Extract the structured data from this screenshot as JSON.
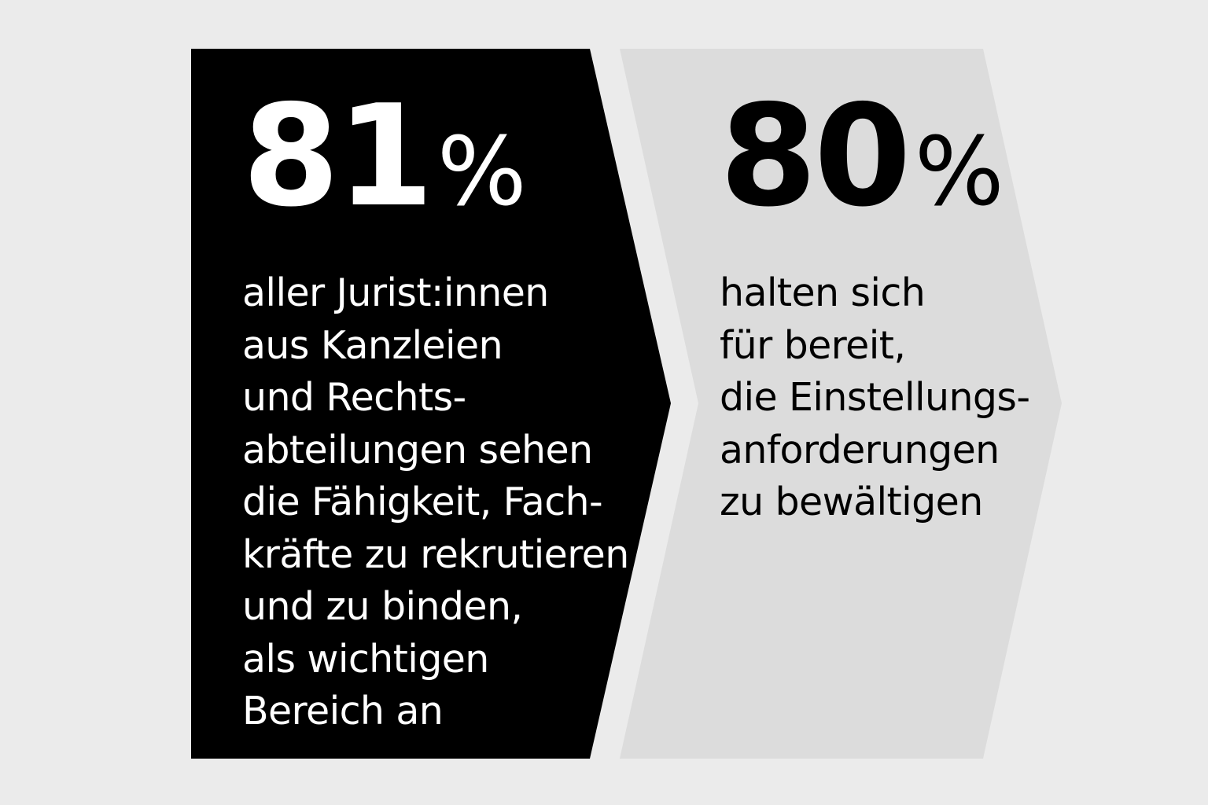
{
  "colors": {
    "background": "#ebebeb",
    "left_panel": "#000000",
    "right_panel": "#dcdcdc",
    "left_text": "#ffffff",
    "right_text": "#000000"
  },
  "stats": [
    {
      "number": "81",
      "percent": "%",
      "lines": [
        "aller Jurist:innen",
        "aus Kanzleien",
        "und Rechts-",
        "abteilungen sehen",
        "die Fähigkeit, Fach-",
        "kräfte zu rekrutieren",
        "und zu binden,",
        "als wichtigen",
        "Bereich an"
      ]
    },
    {
      "number": "80",
      "percent": "%",
      "lines": [
        "halten sich",
        "für bereit,",
        "die Einstellungs-",
        "anforderungen",
        "zu bewältigen"
      ]
    }
  ]
}
